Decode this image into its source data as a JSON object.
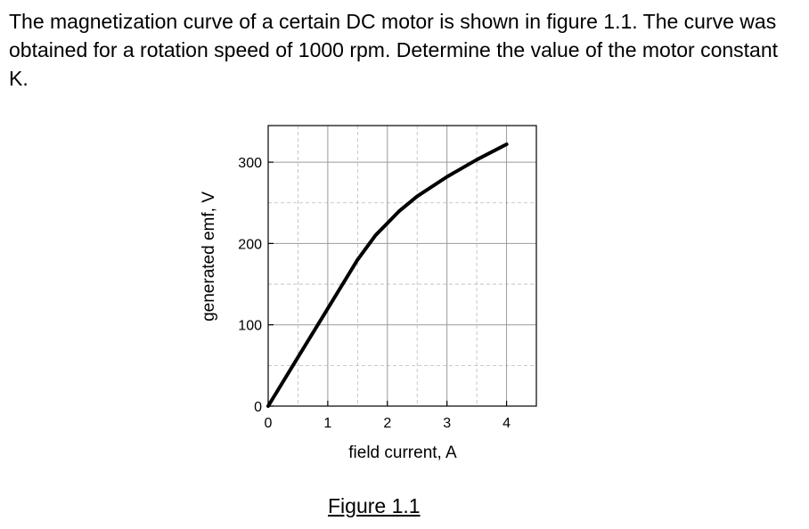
{
  "problem_text": "The magnetization curve of a certain DC motor is shown in figure 1.1. The curve was obtained for a rotation speed of 1000 rpm. Determine the value of the motor constant K.",
  "figure_caption": "Figure 1.1",
  "chart_data": {
    "type": "line",
    "xlabel": "field current, A",
    "ylabel": "generated emf, V",
    "xlim": [
      0,
      4.5
    ],
    "ylim": [
      0,
      345
    ],
    "xticks": [
      0,
      1,
      2,
      3,
      4
    ],
    "yticks": [
      0,
      100,
      200,
      300
    ],
    "x_tick_labels": [
      "0",
      "1",
      "2",
      "3",
      "4"
    ],
    "y_tick_labels": [
      "0",
      "100",
      "200",
      "300"
    ],
    "grid": true,
    "series": [
      {
        "color": "#000000",
        "x": [
          0,
          0.5,
          1.0,
          1.5,
          1.8,
          2.0,
          2.2,
          2.5,
          3.0,
          3.5,
          4.0
        ],
        "y": [
          0,
          60,
          120,
          180,
          210,
          225,
          240,
          258,
          282,
          303,
          322
        ]
      }
    ]
  }
}
